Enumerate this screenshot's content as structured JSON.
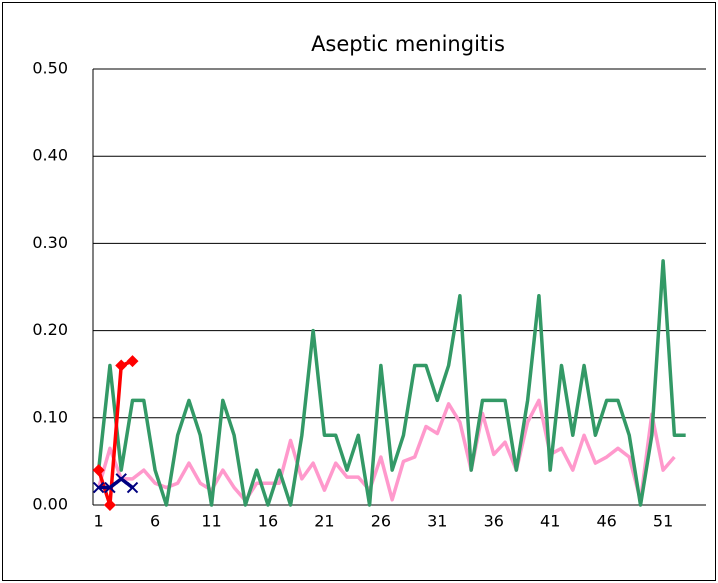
{
  "chart_data": {
    "type": "line",
    "title": "Aseptic meningitis",
    "x": [
      1,
      2,
      3,
      4,
      5,
      6,
      7,
      8,
      9,
      10,
      11,
      12,
      13,
      14,
      15,
      16,
      17,
      18,
      19,
      20,
      21,
      22,
      23,
      24,
      25,
      26,
      27,
      28,
      29,
      30,
      31,
      32,
      33,
      34,
      35,
      36,
      37,
      38,
      39,
      40,
      41,
      42,
      43,
      44,
      45,
      46,
      47,
      48,
      49,
      50,
      51,
      52,
      53
    ],
    "xlim": [
      0.5,
      54.8
    ],
    "xticks": [
      1,
      6,
      11,
      16,
      21,
      26,
      31,
      36,
      41,
      46,
      51
    ],
    "ylim": [
      0,
      0.5
    ],
    "yticks": [
      {
        "value": 0,
        "label": "0.00"
      },
      {
        "value": 0.1,
        "label": "0.10"
      },
      {
        "value": 0.2,
        "label": "0.20"
      },
      {
        "value": 0.3,
        "label": "0.30"
      },
      {
        "value": 0.4,
        "label": "0.40"
      },
      {
        "value": 0.5,
        "label": "0.50"
      }
    ],
    "grid": true,
    "series": [
      {
        "color": "#ff99cc",
        "marker": "none",
        "values": [
          0.02,
          0.065,
          0.03,
          0.03,
          0.04,
          0.025,
          0.02,
          0.025,
          0.048,
          0.025,
          0.017,
          0.04,
          0.02,
          0.005,
          0.025,
          0.025,
          0.025,
          0.074,
          0.03,
          0.048,
          0.017,
          0.048,
          0.032,
          0.032,
          0.017,
          0.055,
          0.006,
          0.05,
          0.055,
          0.09,
          0.082,
          0.116,
          0.095,
          0.04,
          0.105,
          0.058,
          0.072,
          0.04,
          0.095,
          0.12,
          0.058,
          0.065,
          0.04,
          0.08,
          0.048,
          0.055,
          0.065,
          0.055,
          0.005,
          0.104,
          0.04,
          0.055,
          null
        ]
      },
      {
        "color": "#339966",
        "marker": "none",
        "values": [
          0.04,
          0.16,
          0.04,
          0.12,
          0.12,
          0.04,
          0,
          0.08,
          0.12,
          0.08,
          0,
          0.12,
          0.08,
          0,
          0.04,
          0,
          0.04,
          0,
          0.08,
          0.2,
          0.08,
          0.08,
          0.04,
          0.08,
          0,
          0.16,
          0.04,
          0.08,
          0.16,
          0.16,
          0.12,
          0.16,
          0.24,
          0.04,
          0.12,
          0.12,
          0.12,
          0.04,
          0.12,
          0.24,
          0.04,
          0.16,
          0.08,
          0.16,
          0.08,
          0.12,
          0.12,
          0.08,
          0,
          0.08,
          0.28,
          0.08,
          0.08
        ]
      },
      {
        "color": "#ff0000",
        "marker": "diamond",
        "values": [
          0.04,
          0,
          0.16,
          0.165,
          null,
          null,
          null,
          null,
          null,
          null,
          null,
          null,
          null,
          null,
          null,
          null,
          null,
          null,
          null,
          null,
          null,
          null,
          null,
          null,
          null,
          null,
          null,
          null,
          null,
          null,
          null,
          null,
          null,
          null,
          null,
          null,
          null,
          null,
          null,
          null,
          null,
          null,
          null,
          null,
          null,
          null,
          null,
          null,
          null,
          null,
          null,
          null,
          null
        ]
      },
      {
        "color": "#000080",
        "marker": "x",
        "values": [
          0.02,
          0.02,
          0.03,
          0.02,
          null,
          null,
          null,
          null,
          null,
          null,
          null,
          null,
          null,
          null,
          null,
          null,
          null,
          null,
          null,
          null,
          null,
          null,
          null,
          null,
          null,
          null,
          null,
          null,
          null,
          null,
          null,
          null,
          null,
          null,
          null,
          null,
          null,
          null,
          null,
          null,
          null,
          null,
          null,
          null,
          null,
          null,
          null,
          null,
          null,
          null,
          null,
          null,
          null
        ]
      }
    ]
  }
}
